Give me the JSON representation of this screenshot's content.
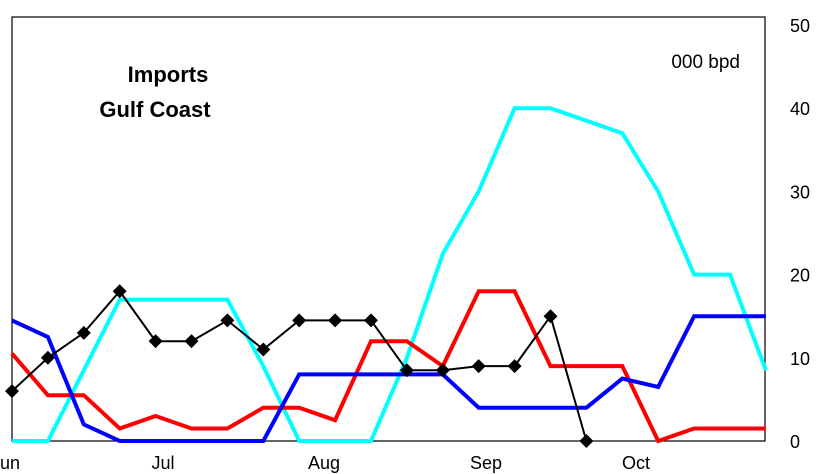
{
  "chart_data": {
    "type": "line",
    "title_lines": [
      "Imports",
      "Gulf Coast"
    ],
    "unit_label": "000 bpd",
    "xlabel": "",
    "ylabel": "",
    "x_tick_labels": [
      "un",
      "Jul",
      "Aug",
      "Sep",
      "Oct"
    ],
    "y_axis_side": "right",
    "ylim": [
      0,
      50
    ],
    "y_ticks": [
      0,
      10,
      20,
      30,
      40,
      50
    ],
    "grid": false,
    "legend": "none",
    "x_index": [
      0,
      1,
      2,
      3,
      4,
      5,
      6,
      7,
      8,
      9,
      10,
      11,
      12,
      13,
      14,
      15,
      16,
      17,
      18,
      19,
      20,
      21
    ],
    "series": [
      {
        "color": "#000000",
        "marker": "diamond",
        "values": [
          6,
          10,
          13,
          18,
          12,
          12,
          14.5,
          11,
          14.5,
          14.5,
          14.5,
          8.5,
          8.5,
          9,
          9,
          15,
          0,
          null,
          null,
          null,
          null,
          null
        ]
      },
      {
        "color": "#0000ff",
        "marker": "none",
        "values": [
          14.5,
          12.5,
          2,
          0,
          0,
          0,
          0,
          0,
          8,
          8,
          8,
          8,
          8,
          4,
          4,
          4,
          4,
          7.5,
          6.5,
          15,
          15,
          15
        ]
      },
      {
        "color": "#ff0000",
        "marker": "none",
        "values": [
          10.5,
          5.5,
          5.5,
          1.5,
          3,
          1.5,
          1.5,
          4,
          4,
          2.5,
          12,
          12,
          9,
          18,
          18,
          9,
          9,
          9,
          0,
          1.5,
          1.5,
          1.5
        ]
      },
      {
        "color": "#00ffff",
        "marker": "none",
        "values": [
          0,
          0,
          8.5,
          17,
          17,
          17,
          17,
          9,
          0,
          0,
          0,
          10,
          22.5,
          30,
          40,
          40,
          38.5,
          37,
          30,
          20,
          20,
          8.5
        ]
      }
    ]
  }
}
